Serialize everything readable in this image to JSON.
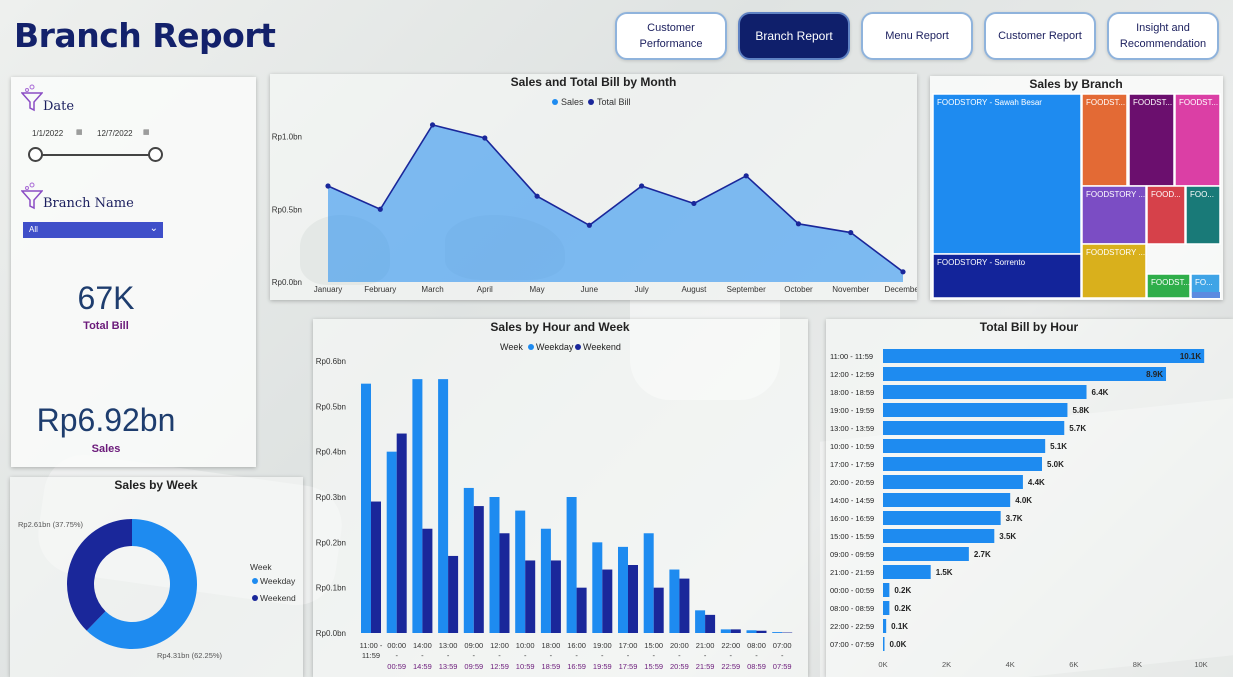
{
  "page_title": "Branch Report",
  "nav": {
    "customer_performance": "Customer\nPerformance",
    "branch_report": "Branch Report",
    "menu_report": "Menu Report",
    "customer_report": "Customer Report",
    "insight": "Insight and\nRecommendation"
  },
  "filters": {
    "date_label": "Date",
    "date_start": "1/1/2022",
    "date_end": "12/7/2022",
    "branch_label": "Branch Name",
    "branch_value": "All"
  },
  "kpis": {
    "total_bill_value": "67K",
    "total_bill_label": "Total Bill",
    "sales_value": "Rp6.92bn",
    "sales_label": "Sales"
  },
  "colors": {
    "sales": "#1e8bf0",
    "total_bill": "#1a279a",
    "weekday": "#1e8bf0",
    "weekend": "#1a279a",
    "bar": "#1e8bf0",
    "nav_active": "#0f1f6b"
  },
  "chart_data": [
    {
      "id": "sales_total_bill_by_month",
      "type": "area",
      "title": "Sales and Total Bill by Month",
      "legend": [
        "Sales",
        "Total Bill"
      ],
      "legend_position": "top-center",
      "categories": [
        "January",
        "February",
        "March",
        "April",
        "May",
        "June",
        "July",
        "August",
        "September",
        "October",
        "November",
        "December"
      ],
      "y_ticks": [
        "Rp0.0bn",
        "Rp0.5bn",
        "Rp1.0bn"
      ],
      "ylim": [
        0,
        1.1
      ],
      "series": [
        {
          "name": "Sales",
          "values": [
            0.66,
            0.5,
            1.08,
            0.99,
            0.59,
            0.39,
            0.66,
            0.54,
            0.73,
            0.4,
            0.34,
            0.07
          ]
        }
      ]
    },
    {
      "id": "sales_by_branch",
      "type": "treemap",
      "title": "Sales by Branch",
      "labels": [
        "FOODSTORY - Sawah Besar",
        "FOODSTORY - Sorrento",
        "FOODST...",
        "FOODST...",
        "FOODST...",
        "FOODSTORY ...",
        "FOOD...",
        "FOO...",
        "FOODSTORY ...",
        "FOODST...",
        "FO..."
      ],
      "colors": [
        "#1e8bf0",
        "#13249a",
        "#e36a35",
        "#6b0f6e",
        "#db3fa5",
        "#7b4dc4",
        "#d6414a",
        "#197a78",
        "#d9b01c",
        "#2fae4a",
        "#3fa4e6"
      ]
    },
    {
      "id": "sales_by_hour_and_week",
      "type": "bar",
      "title": "Sales by Hour and Week",
      "legend_title": "Week",
      "legend": [
        "Weekday",
        "Weekend"
      ],
      "y_ticks": [
        "Rp0.0bn",
        "Rp0.1bn",
        "Rp0.2bn",
        "Rp0.3bn",
        "Rp0.4bn",
        "Rp0.5bn",
        "Rp0.6bn"
      ],
      "ylim": [
        0,
        0.6
      ],
      "categories_top": [
        "11:00 -",
        "00:00",
        "14:00",
        "13:00",
        "09:00",
        "12:00",
        "10:00",
        "18:00",
        "16:00",
        "19:00",
        "17:00",
        "15:00",
        "20:00",
        "21:00",
        "22:00",
        "08:00",
        "07:00"
      ],
      "categories_mid": [
        "11:59",
        "-",
        "-",
        "-",
        "-",
        "-",
        "-",
        "-",
        "-",
        "-",
        "-",
        "-",
        "-",
        "-",
        "-",
        "-",
        "-"
      ],
      "categories_bottom": [
        "",
        "00:59",
        "14:59",
        "13:59",
        "09:59",
        "12:59",
        "10:59",
        "18:59",
        "16:59",
        "19:59",
        "17:59",
        "15:59",
        "20:59",
        "21:59",
        "22:59",
        "08:59",
        "07:59"
      ],
      "series": [
        {
          "name": "Weekday",
          "values": [
            0.55,
            0.4,
            0.56,
            0.56,
            0.32,
            0.3,
            0.27,
            0.23,
            0.3,
            0.2,
            0.19,
            0.22,
            0.14,
            0.05,
            0.008,
            0.006,
            0.002
          ]
        },
        {
          "name": "Weekend",
          "values": [
            0.29,
            0.44,
            0.23,
            0.17,
            0.28,
            0.22,
            0.16,
            0.16,
            0.1,
            0.14,
            0.15,
            0.1,
            0.12,
            0.04,
            0.008,
            0.005,
            0.001
          ]
        }
      ]
    },
    {
      "id": "sales_by_week",
      "type": "pie",
      "title": "Sales by Week",
      "legend_title": "Week",
      "legend": [
        "Weekday",
        "Weekend"
      ],
      "values": [
        4.31,
        2.61
      ],
      "data_labels": [
        "Rp4.31bn (62.25%)",
        "Rp2.61bn (37.75%)"
      ]
    },
    {
      "id": "total_bill_by_hour",
      "type": "bar",
      "orientation": "horizontal",
      "title": "Total Bill by Hour",
      "categories": [
        "11:00 - 11:59",
        "12:00 - 12:59",
        "18:00 - 18:59",
        "19:00 - 19:59",
        "13:00 - 13:59",
        "10:00 - 10:59",
        "17:00 - 17:59",
        "20:00 - 20:59",
        "14:00 - 14:59",
        "16:00 - 16:59",
        "15:00 - 15:59",
        "09:00 - 09:59",
        "21:00 - 21:59",
        "00:00 - 00:59",
        "08:00 - 08:59",
        "22:00 - 22:59",
        "07:00 - 07:59"
      ],
      "values": [
        10.1,
        8.9,
        6.4,
        5.8,
        5.7,
        5.1,
        5.0,
        4.4,
        4.0,
        3.7,
        3.5,
        2.7,
        1.5,
        0.2,
        0.2,
        0.1,
        0.0
      ],
      "data_labels": [
        "10.1K",
        "8.9K",
        "6.4K",
        "5.8K",
        "5.7K",
        "5.1K",
        "5.0K",
        "4.4K",
        "4.0K",
        "3.7K",
        "3.5K",
        "2.7K",
        "1.5K",
        "0.2K",
        "0.2K",
        "0.1K",
        "0.0K"
      ],
      "x_ticks": [
        "0K",
        "2K",
        "4K",
        "6K",
        "8K",
        "10K"
      ],
      "xlim": [
        0,
        10
      ]
    }
  ]
}
